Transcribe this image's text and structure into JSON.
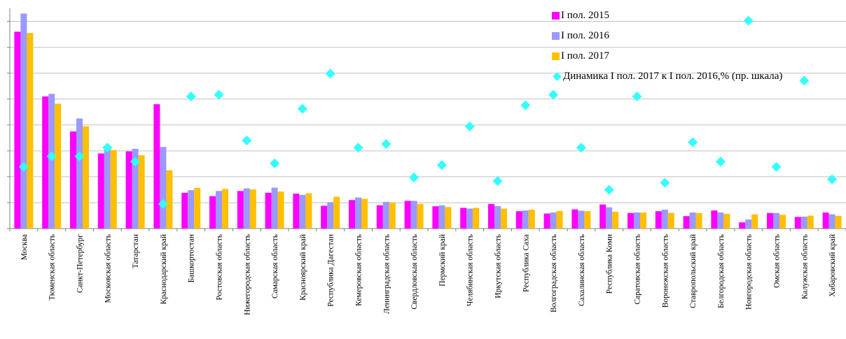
{
  "chart_data": {
    "type": "bar",
    "categories": [
      "Москва",
      "Тюменская область",
      "Санкт-Петербург",
      "Московская область",
      "Татарстан",
      "Краснодарский край",
      "Башкортостан",
      "Ростовская область",
      "Нижегородская область",
      "Самарская область",
      "Красноярский край",
      "Республика Дагестан",
      "Кемеровская область",
      "Ленинградская область",
      "Свердловская область",
      "Пермский край",
      "Челябинская область",
      "Иркутская область",
      "Республика Саха",
      "Волгоградская область",
      "Сахалинская область",
      "Республика Коми",
      "Саратовская область",
      "Воронежская область",
      "Ставропольский край",
      "Белгородская область",
      "Новгородская область",
      "Омская область",
      "Калужская область",
      "Хабаровский край"
    ],
    "series": [
      {
        "name": "I пол. 2015",
        "color": "#ff00ff",
        "values": [
          7.6,
          5.1,
          3.75,
          2.9,
          2.98,
          4.8,
          1.38,
          1.25,
          1.45,
          1.38,
          1.35,
          0.88,
          1.1,
          0.9,
          1.07,
          0.86,
          0.8,
          0.95,
          0.67,
          0.58,
          0.74,
          0.93,
          0.6,
          0.67,
          0.48,
          0.7,
          0.24,
          0.6,
          0.45,
          0.62
        ]
      },
      {
        "name": "I пол. 2016",
        "color": "#9999ff",
        "values": [
          8.3,
          5.2,
          4.25,
          3.15,
          3.08,
          3.15,
          1.48,
          1.45,
          1.55,
          1.58,
          1.3,
          1.02,
          1.2,
          1.03,
          1.07,
          0.9,
          0.77,
          0.87,
          0.7,
          0.62,
          0.69,
          0.82,
          0.62,
          0.73,
          0.62,
          0.62,
          0.35,
          0.6,
          0.46,
          0.55
        ]
      },
      {
        "name": "I пол. 2017",
        "color": "#ffc000",
        "values": [
          7.55,
          4.82,
          3.95,
          3.03,
          2.83,
          2.25,
          1.57,
          1.53,
          1.51,
          1.43,
          1.36,
          1.23,
          1.15,
          1.0,
          0.95,
          0.83,
          0.8,
          0.77,
          0.73,
          0.68,
          0.67,
          0.65,
          0.62,
          0.61,
          0.6,
          0.57,
          0.55,
          0.53,
          0.5,
          0.49
        ]
      }
    ],
    "line_series": {
      "name": "Динамика I пол. 2017 к I пол. 2016,% (пр. шкала)",
      "color": "#33ffff",
      "marker": "diamond",
      "axis": "right",
      "values": [
        90,
        96,
        96,
        101,
        93,
        69,
        130,
        131,
        105,
        92,
        123,
        143,
        101,
        103,
        84,
        91,
        113,
        82,
        125,
        131,
        101,
        77,
        130,
        81,
        104,
        93,
        173,
        90,
        139,
        83
      ]
    },
    "ylim": [
      0,
      8.5
    ],
    "y2lim": [
      55,
      180
    ],
    "xlabel": "",
    "ylabel": "",
    "grid": true,
    "legend": "top-right"
  }
}
